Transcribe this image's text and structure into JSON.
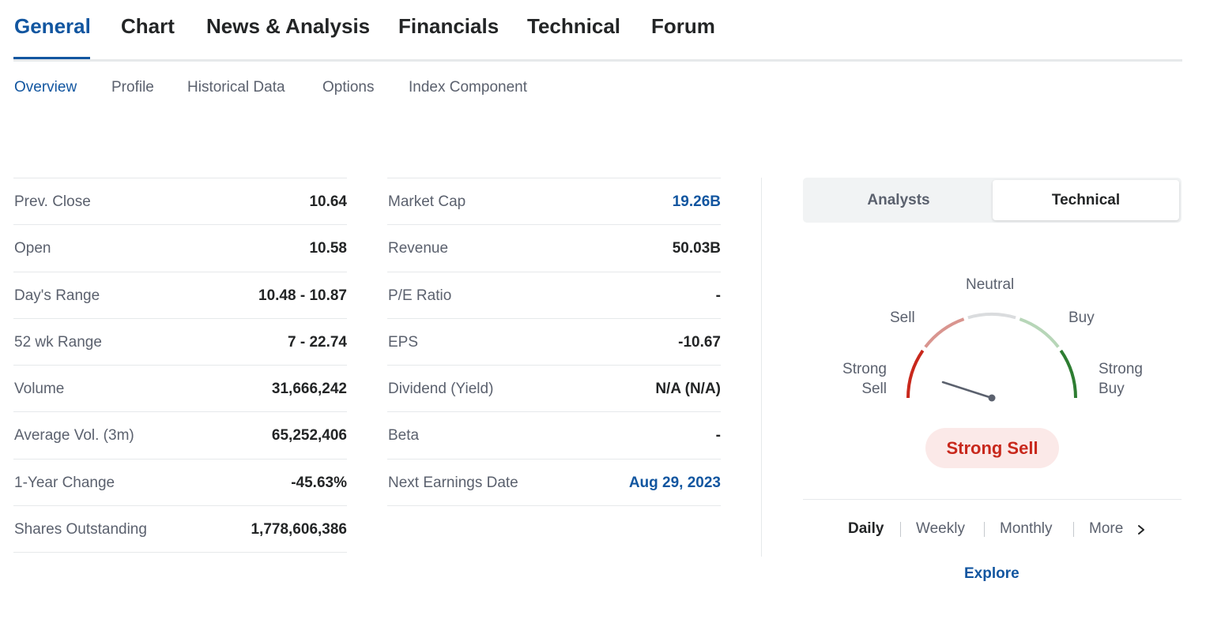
{
  "main_tabs": [
    {
      "label": "General",
      "active": true
    },
    {
      "label": "Chart"
    },
    {
      "label": "News & Analysis"
    },
    {
      "label": "Financials"
    },
    {
      "label": "Technical"
    },
    {
      "label": "Forum"
    }
  ],
  "sub_tabs": [
    {
      "label": "Overview",
      "active": true
    },
    {
      "label": "Profile"
    },
    {
      "label": "Historical Data"
    },
    {
      "label": "Options"
    },
    {
      "label": "Index Component"
    }
  ],
  "stats_left": [
    {
      "label": "Prev. Close",
      "value": "10.64"
    },
    {
      "label": "Open",
      "value": "10.58"
    },
    {
      "label": "Day's Range",
      "value": "10.48 - 10.87"
    },
    {
      "label": "52 wk Range",
      "value": "7 - 22.74"
    },
    {
      "label": "Volume",
      "value": "31,666,242"
    },
    {
      "label": "Average Vol. (3m)",
      "value": "65,252,406"
    },
    {
      "label": "1-Year Change",
      "value": "-45.63%"
    },
    {
      "label": "Shares Outstanding",
      "value": "1,778,606,386"
    }
  ],
  "stats_right": [
    {
      "label": "Market Cap",
      "value": "19.26B",
      "link": true
    },
    {
      "label": "Revenue",
      "value": "50.03B"
    },
    {
      "label": "P/E Ratio",
      "value": "-"
    },
    {
      "label": "EPS",
      "value": "-10.67"
    },
    {
      "label": "Dividend (Yield)",
      "value": "N/A (N/A)"
    },
    {
      "label": "Beta",
      "value": "-"
    },
    {
      "label": "Next Earnings Date",
      "value": "Aug 29, 2023",
      "link": true
    }
  ],
  "sentiment_panel": {
    "toggle": {
      "analysts_label": "Analysts",
      "technical_label": "Technical",
      "selected": "Technical"
    },
    "gauge": {
      "labels": {
        "strong_sell_line1": "Strong",
        "strong_sell_line2": "Sell",
        "sell": "Sell",
        "neutral": "Neutral",
        "buy": "Buy",
        "strong_buy_line1": "Strong",
        "strong_buy_line2": "Buy"
      },
      "segment_colors": {
        "strong_sell": "#c8281c",
        "sell": "#d9958f",
        "neutral": "#dadcde",
        "buy": "#b7d6b8",
        "strong_buy": "#2e7d32"
      },
      "needle_color": "#5b616e"
    },
    "verdict": "Strong Sell",
    "periods": [
      {
        "label": "Daily",
        "active": true
      },
      {
        "label": "Weekly"
      },
      {
        "label": "Monthly"
      },
      {
        "label": "More"
      }
    ],
    "explore_label": "Explore"
  },
  "colors": {
    "accent": "#1256a0",
    "text": "#232526",
    "muted": "#5b616e",
    "sell": "#c8281c"
  }
}
